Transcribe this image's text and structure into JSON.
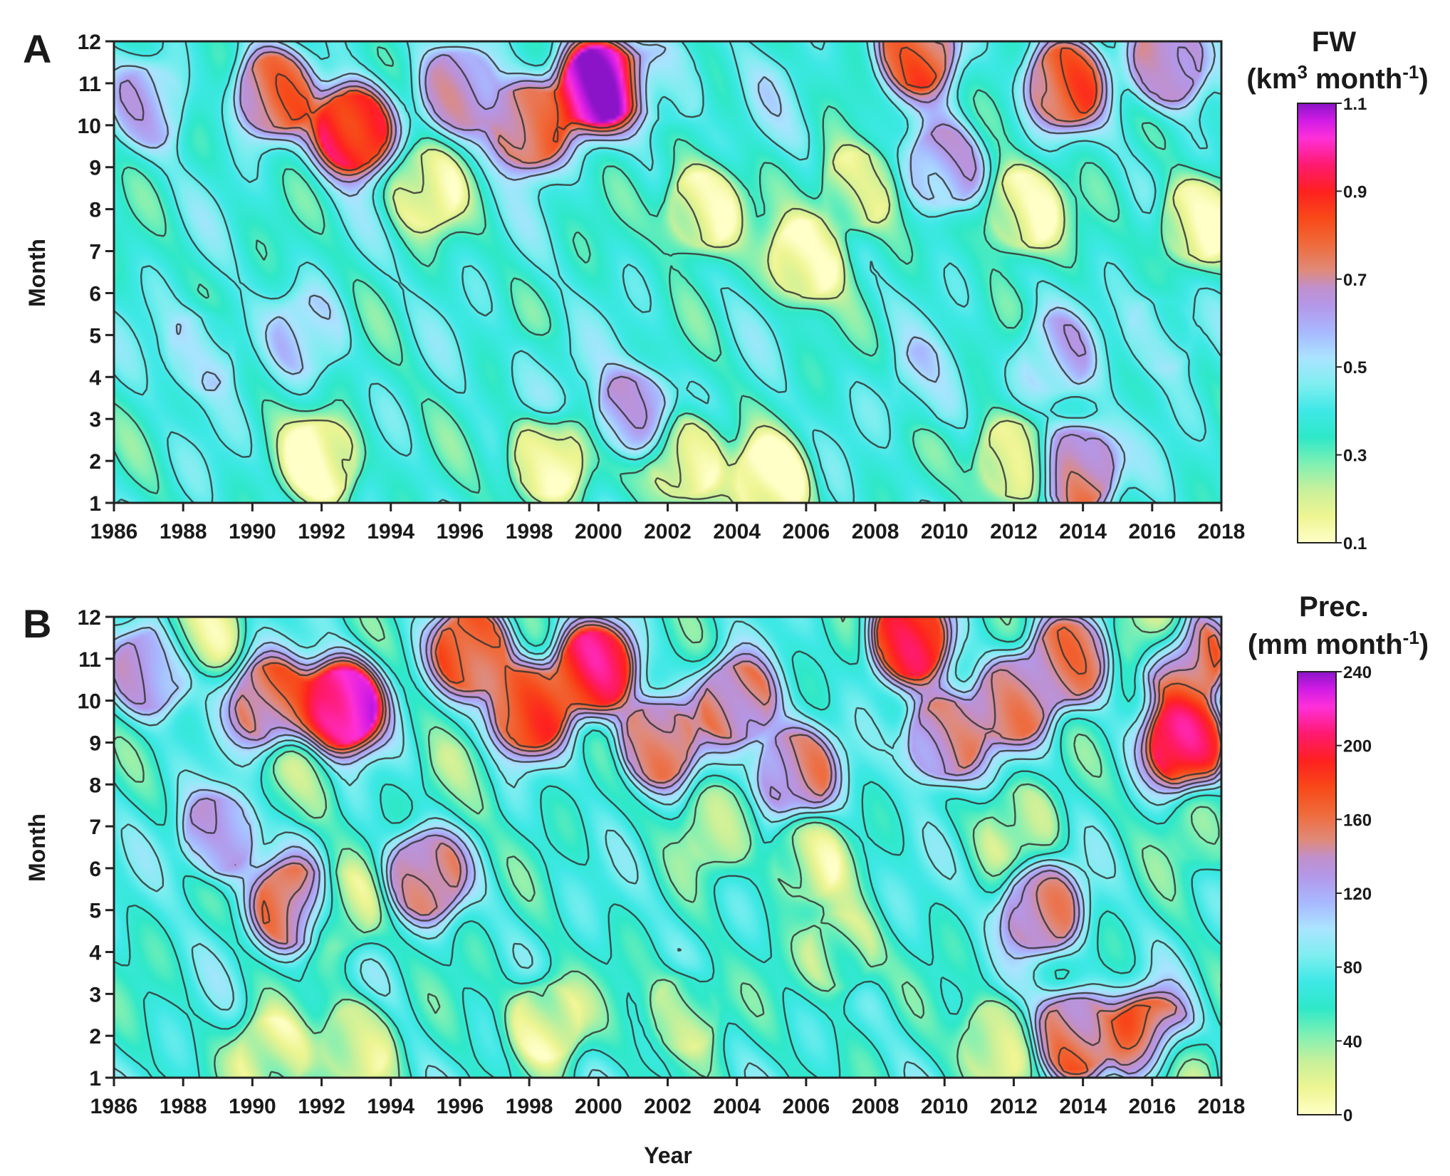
{
  "figure": {
    "panels": [
      {
        "letter": "A",
        "ylabel": "Month",
        "colorbar": {
          "title_line1": "FW",
          "title_unit_prefix": "(km",
          "title_unit_sup": "3",
          "title_unit_mid": " month",
          "title_unit_sup2": "-1",
          "title_unit_suffix": ")",
          "ticks": [
            "1.1",
            "0.9",
            "0.7",
            "0.5",
            "0.3",
            "0.1"
          ]
        }
      },
      {
        "letter": "B",
        "ylabel": "Month",
        "xlabel": "Year",
        "colorbar": {
          "title_line1": "Prec.",
          "title_unit_prefix": "(mm month",
          "title_unit_sup": "-1",
          "title_unit_suffix": ")",
          "ticks": [
            "240",
            "200",
            "160",
            "120",
            "80",
            "40",
            "0"
          ]
        }
      }
    ]
  },
  "chart_data": [
    {
      "type": "heatmap",
      "title": "FW (km3 month-1)",
      "xlabel": "",
      "ylabel": "Month",
      "x_ticks": [
        "1986",
        "1988",
        "1990",
        "1992",
        "1994",
        "1996",
        "1998",
        "2000",
        "2002",
        "2004",
        "2006",
        "2008",
        "2010",
        "2012",
        "2014",
        "2016",
        "2018"
      ],
      "y_ticks": [
        "1",
        "2",
        "3",
        "4",
        "5",
        "6",
        "7",
        "8",
        "9",
        "10",
        "11",
        "12"
      ],
      "xlim": [
        1986,
        2018
      ],
      "ylim": [
        1,
        12
      ],
      "color_range": [
        0.1,
        1.1
      ],
      "contour_levels": [
        0.2,
        0.3,
        0.4,
        0.5,
        0.6,
        0.7,
        0.8
      ],
      "colorscale": [
        "#ffffc8",
        "#eef592",
        "#c8f09a",
        "#7ff0b4",
        "#2ee8c8",
        "#3ee8e6",
        "#7feef0",
        "#aae4ff",
        "#a8b8ff",
        "#b497e8",
        "#c090cc",
        "#e08a7a",
        "#f06a3a",
        "#f84818",
        "#ff2020",
        "#ff1a70",
        "#ff30d8",
        "#d21ce6",
        "#8c14c8"
      ],
      "hotspots": [
        {
          "year": 1987.0,
          "month": 10.5,
          "value": 0.5
        },
        {
          "year": 1988.5,
          "month": 4.6,
          "value": 0.48
        },
        {
          "year": 1990.6,
          "month": 10.8,
          "value": 0.7
        },
        {
          "year": 1992.9,
          "month": 9.9,
          "value": 0.9
        },
        {
          "year": 1991.6,
          "month": 5.0,
          "value": 0.46
        },
        {
          "year": 1992.0,
          "month": 2.0,
          "value": 0.12
        },
        {
          "year": 1996.0,
          "month": 10.9,
          "value": 0.58
        },
        {
          "year": 1998.0,
          "month": 10.0,
          "value": 0.76
        },
        {
          "year": 2000.0,
          "month": 11.0,
          "value": 1.05
        },
        {
          "year": 2001.0,
          "month": 3.1,
          "value": 0.6
        },
        {
          "year": 1998.5,
          "month": 4.0,
          "value": 0.42
        },
        {
          "year": 1998.5,
          "month": 2.0,
          "value": 0.12
        },
        {
          "year": 2002.0,
          "month": 11.0,
          "value": 0.46
        },
        {
          "year": 2003.0,
          "month": 8.0,
          "value": 0.12
        },
        {
          "year": 2002.5,
          "month": 2.0,
          "value": 0.12
        },
        {
          "year": 2006.0,
          "month": 6.8,
          "value": 0.13
        },
        {
          "year": 2005.0,
          "month": 1.5,
          "value": 0.13
        },
        {
          "year": 2005.5,
          "month": 10.5,
          "value": 0.4
        },
        {
          "year": 2009.2,
          "month": 11.8,
          "value": 0.74
        },
        {
          "year": 2010.0,
          "month": 9.0,
          "value": 0.58
        },
        {
          "year": 2009.5,
          "month": 3.8,
          "value": 0.44
        },
        {
          "year": 2012.3,
          "month": 8.0,
          "value": 0.12
        },
        {
          "year": 2012.0,
          "month": 2.0,
          "value": 0.13
        },
        {
          "year": 2013.5,
          "month": 11.0,
          "value": 0.74
        },
        {
          "year": 2013.9,
          "month": 1.8,
          "value": 0.72
        },
        {
          "year": 2013.2,
          "month": 4.5,
          "value": 0.5
        },
        {
          "year": 2016.5,
          "month": 11.5,
          "value": 0.66
        },
        {
          "year": 2016.3,
          "month": 5.0,
          "value": 0.46
        },
        {
          "year": 2017.3,
          "month": 7.7,
          "value": 0.14
        },
        {
          "year": 1995.0,
          "month": 8.5,
          "value": 0.18
        },
        {
          "year": 2007.5,
          "month": 8.5,
          "value": 0.18
        }
      ]
    },
    {
      "type": "heatmap",
      "title": "Prec. (mm month-1)",
      "xlabel": "Year",
      "ylabel": "Month",
      "x_ticks": [
        "1986",
        "1988",
        "1990",
        "1992",
        "1994",
        "1996",
        "1998",
        "2000",
        "2002",
        "2004",
        "2006",
        "2008",
        "2010",
        "2012",
        "2014",
        "2016",
        "2018"
      ],
      "y_ticks": [
        "1",
        "2",
        "3",
        "4",
        "5",
        "6",
        "7",
        "8",
        "9",
        "10",
        "11",
        "12"
      ],
      "xlim": [
        1986,
        2018
      ],
      "ylim": [
        1,
        12
      ],
      "color_range": [
        0,
        240
      ],
      "contour_levels": [
        40,
        60,
        80,
        100,
        120,
        140,
        160
      ],
      "colorscale": [
        "#ffffc8",
        "#eef592",
        "#c8f09a",
        "#7ff0b4",
        "#2ee8c8",
        "#3ee8e6",
        "#7feef0",
        "#aae4ff",
        "#a8b8ff",
        "#b497e8",
        "#c090cc",
        "#e08a7a",
        "#f06a3a",
        "#f84818",
        "#ff2020",
        "#ff1a70",
        "#ff30d8",
        "#d21ce6",
        "#8c14c8"
      ],
      "hotspots": [
        {
          "year": 1987.0,
          "month": 10.7,
          "value": 115
        },
        {
          "year": 1988.5,
          "month": 11.8,
          "value": 30
        },
        {
          "year": 1990.5,
          "month": 10.0,
          "value": 150
        },
        {
          "year": 1992.6,
          "month": 9.9,
          "value": 215
        },
        {
          "year": 1989.0,
          "month": 6.8,
          "value": 118
        },
        {
          "year": 1991.1,
          "month": 5.1,
          "value": 150
        },
        {
          "year": 1992.5,
          "month": 5.0,
          "value": 30
        },
        {
          "year": 1995.0,
          "month": 5.8,
          "value": 135
        },
        {
          "year": 1996.3,
          "month": 11.2,
          "value": 155
        },
        {
          "year": 1998.0,
          "month": 9.8,
          "value": 165
        },
        {
          "year": 1999.9,
          "month": 10.8,
          "value": 185
        },
        {
          "year": 2001.7,
          "month": 9.0,
          "value": 140
        },
        {
          "year": 2004.0,
          "month": 10.0,
          "value": 140
        },
        {
          "year": 2005.7,
          "month": 8.3,
          "value": 140
        },
        {
          "year": 2009.0,
          "month": 11.5,
          "value": 175
        },
        {
          "year": 2010.0,
          "month": 9.1,
          "value": 140
        },
        {
          "year": 2012.0,
          "month": 10.0,
          "value": 140
        },
        {
          "year": 2013.6,
          "month": 11.0,
          "value": 140
        },
        {
          "year": 2017.0,
          "month": 11.0,
          "value": 160
        },
        {
          "year": 2017.0,
          "month": 9.0,
          "value": 190
        },
        {
          "year": 2013.8,
          "month": 2.0,
          "value": 150
        },
        {
          "year": 2016.0,
          "month": 1.9,
          "value": 170
        },
        {
          "year": 2012.8,
          "month": 5.0,
          "value": 140
        },
        {
          "year": 1998.5,
          "month": 2.3,
          "value": 15
        },
        {
          "year": 1990.5,
          "month": 1.5,
          "value": 20
        },
        {
          "year": 1993.0,
          "month": 1.8,
          "value": 25
        },
        {
          "year": 2002.5,
          "month": 2.5,
          "value": 30
        },
        {
          "year": 2006.0,
          "month": 6.2,
          "value": 25
        },
        {
          "year": 2003.5,
          "month": 7.0,
          "value": 35
        },
        {
          "year": 2007.0,
          "month": 4.0,
          "value": 30
        },
        {
          "year": 2011.5,
          "month": 1.8,
          "value": 25
        },
        {
          "year": 2012.2,
          "month": 7.0,
          "value": 35
        },
        {
          "year": 2016.7,
          "month": 1.3,
          "value": 30
        },
        {
          "year": 2016.0,
          "month": 11.8,
          "value": 30
        },
        {
          "year": 2017.5,
          "month": 7.0,
          "value": 45
        },
        {
          "year": 1991.3,
          "month": 8.0,
          "value": 45
        },
        {
          "year": 1996.0,
          "month": 8.0,
          "value": 50
        },
        {
          "year": 2000.0,
          "month": 7.0,
          "value": 60
        }
      ]
    }
  ]
}
